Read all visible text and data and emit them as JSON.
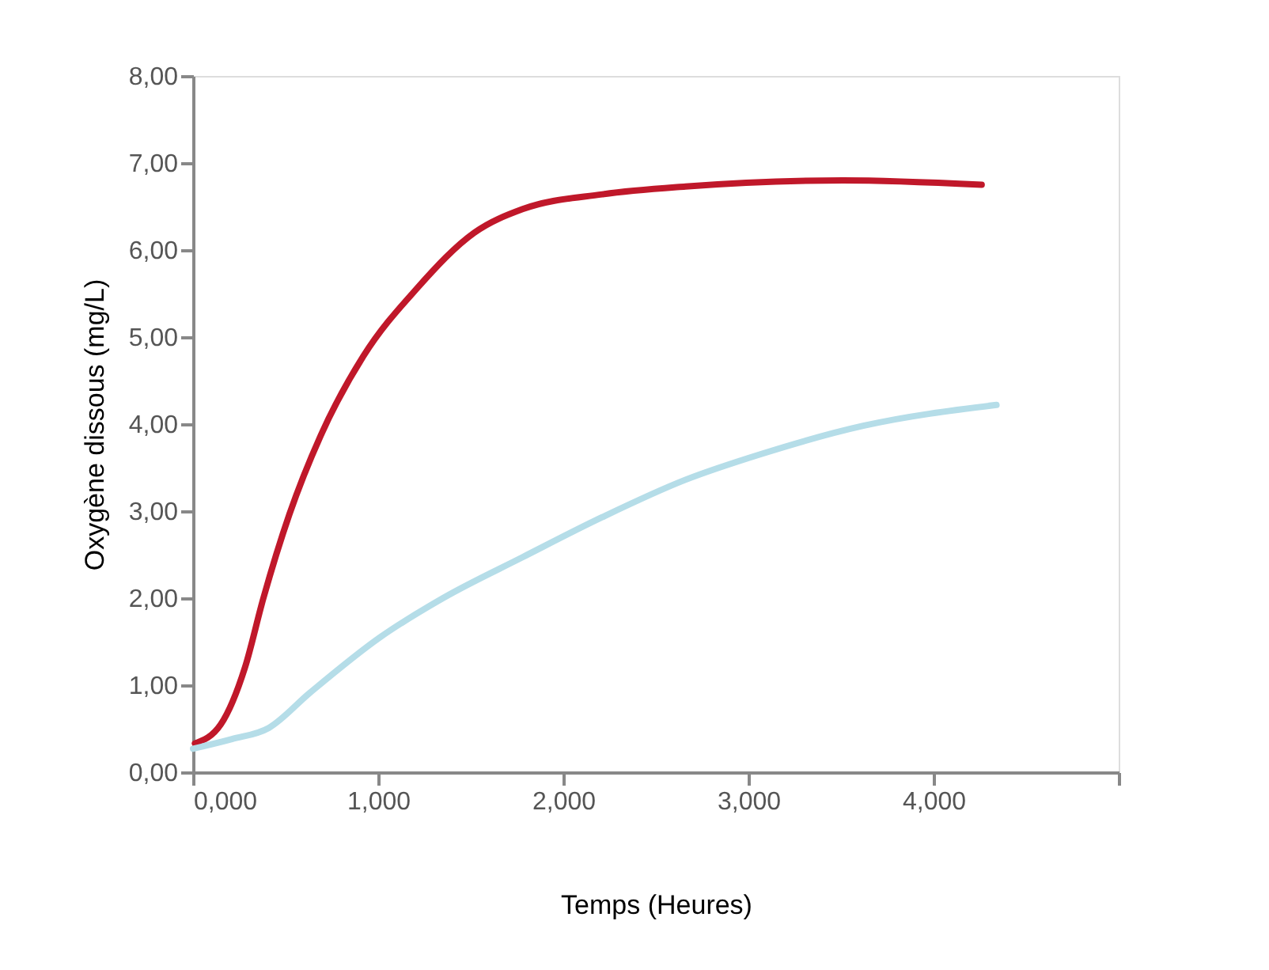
{
  "chart_data": {
    "type": "line",
    "xlabel": "Temps (Heures)",
    "ylabel": "Oxygène dissous (mg/L)",
    "series": [
      {
        "color": "#c0182a",
        "x": [
          0.01,
          0.15,
          0.28,
          0.38,
          0.52,
          0.69,
          0.92,
          1.21,
          1.52,
          1.78,
          2.21,
          2.66,
          3.51,
          4.26
        ],
        "values": [
          0.33,
          0.55,
          1.2,
          2.0,
          2.96,
          3.87,
          4.78,
          5.56,
          6.2,
          6.47,
          6.64,
          6.73,
          6.8,
          6.75
        ]
      },
      {
        "color": "#b5dde8",
        "x": [
          0.0,
          0.21,
          0.41,
          0.63,
          1.01,
          1.35,
          1.78,
          2.21,
          2.66,
          3.06,
          3.62,
          4.34
        ],
        "values": [
          0.27,
          0.38,
          0.51,
          0.91,
          1.55,
          2.0,
          2.47,
          2.93,
          3.36,
          3.65,
          3.98,
          4.22
        ]
      }
    ],
    "xlim": [
      0,
      5
    ],
    "xticks": [
      {
        "value": 0,
        "label": "0,000"
      },
      {
        "value": 1,
        "label": "1,000"
      },
      {
        "value": 2,
        "label": "2,000"
      },
      {
        "value": 3,
        "label": "3,000"
      },
      {
        "value": 4,
        "label": "4,000"
      },
      {
        "value": 5,
        "label": null
      }
    ],
    "ylim": [
      0,
      8
    ],
    "yticks": [
      {
        "value": 0,
        "label": "0,00"
      },
      {
        "value": 1,
        "label": "1,00"
      },
      {
        "value": 2,
        "label": "2,00"
      },
      {
        "value": 3,
        "label": "3,00"
      },
      {
        "value": 4,
        "label": "4,00"
      },
      {
        "value": 5,
        "label": "5,00"
      },
      {
        "value": 6,
        "label": "6,00"
      },
      {
        "value": 7,
        "label": "7,00"
      },
      {
        "value": 8,
        "label": "8,00"
      }
    ],
    "grid": false,
    "legend": false,
    "marker": "none",
    "line_style": "solid"
  }
}
